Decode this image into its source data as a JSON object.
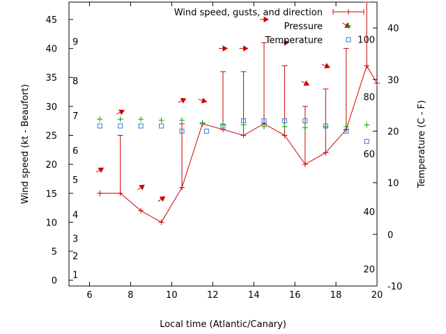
{
  "chart_data": {
    "type": "line",
    "xlabel": "Local time (Atlantic/Canary)",
    "ylabel": "Wind speed (kt - Beaufort)",
    "y2label": "Temperature (C - F)",
    "xlim": [
      5,
      20
    ],
    "ylim": [
      -1,
      48
    ],
    "y2lim": [
      -10,
      45
    ],
    "x_ticks": [
      6,
      8,
      10,
      12,
      14,
      16,
      18,
      20
    ],
    "y_ticks": [
      0,
      5,
      10,
      15,
      20,
      25,
      30,
      35,
      40,
      45
    ],
    "y2_ticks": [
      -10,
      0,
      10,
      20,
      30,
      40
    ],
    "beaufort_labels": [
      {
        "label": "1",
        "y": 1
      },
      {
        "label": "2",
        "y": 4.2
      },
      {
        "label": "3",
        "y": 7.2
      },
      {
        "label": "4",
        "y": 11.4
      },
      {
        "label": "5",
        "y": 17.4
      },
      {
        "label": "6",
        "y": 22.4
      },
      {
        "label": "7",
        "y": 28.4
      },
      {
        "label": "8",
        "y": 34.4
      },
      {
        "label": "9",
        "y": 41.2
      }
    ],
    "fahrenheit_labels": [
      {
        "label": "20",
        "y": -6.7
      },
      {
        "label": "40",
        "y": 4.4
      },
      {
        "label": "60",
        "y": 15.6
      },
      {
        "label": "80",
        "y": 26.7
      },
      {
        "label": "100",
        "y": 37.8
      }
    ],
    "legend": {
      "position": "top-right",
      "entries": [
        {
          "label": "Wind speed, gusts, and direction",
          "color": "#cc0000",
          "marker": "errorbar"
        },
        {
          "label": "Pressure",
          "color": "#00a000",
          "marker": "plus"
        },
        {
          "label": "Temperature",
          "color": "#2a7fd4",
          "marker": "square"
        }
      ]
    },
    "series": [
      {
        "name": "Wind speed, gusts, and direction",
        "color": "#cc0000",
        "x": [
          6.5,
          7.5,
          8.5,
          9.5,
          10.5,
          11.5,
          12.5,
          13.5,
          14.5,
          15.5,
          16.5,
          17.5,
          18.5,
          19.5,
          20.0
        ],
        "speed": [
          15,
          15,
          12,
          10,
          16,
          27,
          26,
          25,
          27,
          25,
          20,
          22,
          26,
          37,
          34
        ],
        "gust": [
          null,
          25,
          null,
          null,
          27,
          null,
          36,
          36,
          41,
          37,
          30,
          33,
          40,
          48,
          null
        ]
      },
      {
        "name": "Pressure",
        "color": "#00a000",
        "x": [
          6.5,
          7.5,
          8.5,
          9.5,
          10.5,
          11.5,
          12.5,
          13.5,
          14.5,
          15.5,
          16.5,
          17.5,
          18.5,
          19.5
        ],
        "values": [
          27.8,
          27.8,
          27.8,
          27.6,
          27.6,
          27.2,
          26.8,
          26.8,
          26.5,
          26.5,
          26.3,
          26.5,
          26.5,
          26.8
        ]
      },
      {
        "name": "Temperature",
        "color": "#2a7fd4",
        "axis": "y2",
        "x": [
          6.5,
          7.5,
          8.5,
          9.5,
          10.5,
          11.7,
          12.5,
          13.5,
          14.5,
          15.5,
          16.5,
          17.5,
          18.5,
          19.5
        ],
        "values": [
          21,
          21,
          21,
          21,
          20,
          20,
          21,
          22,
          22,
          22,
          22,
          21,
          20,
          18
        ]
      }
    ],
    "direction_arrows": [
      {
        "x": 6.5,
        "y": 19,
        "dx": 1,
        "dy": 0.6
      },
      {
        "x": 7.5,
        "y": 29,
        "dx": 1,
        "dy": 0.5
      },
      {
        "x": 8.5,
        "y": 16,
        "dx": 1,
        "dy": 0.7
      },
      {
        "x": 9.5,
        "y": 14,
        "dx": 1,
        "dy": 0.7
      },
      {
        "x": 10.5,
        "y": 31,
        "dx": 1,
        "dy": 0.5
      },
      {
        "x": 11.5,
        "y": 31,
        "dx": 1,
        "dy": -0.3
      },
      {
        "x": 12.5,
        "y": 40,
        "dx": 1,
        "dy": 0
      },
      {
        "x": 13.5,
        "y": 40,
        "dx": 1,
        "dy": 0
      },
      {
        "x": 14.5,
        "y": 45,
        "dx": 1,
        "dy": 0
      },
      {
        "x": 15.5,
        "y": 41,
        "dx": 1,
        "dy": 0.1
      },
      {
        "x": 16.5,
        "y": 34,
        "dx": 1,
        "dy": -0.5
      },
      {
        "x": 17.5,
        "y": 37,
        "dx": 1,
        "dy": -0.4
      },
      {
        "x": 18.5,
        "y": 44,
        "dx": 1,
        "dy": -0.6
      }
    ]
  }
}
